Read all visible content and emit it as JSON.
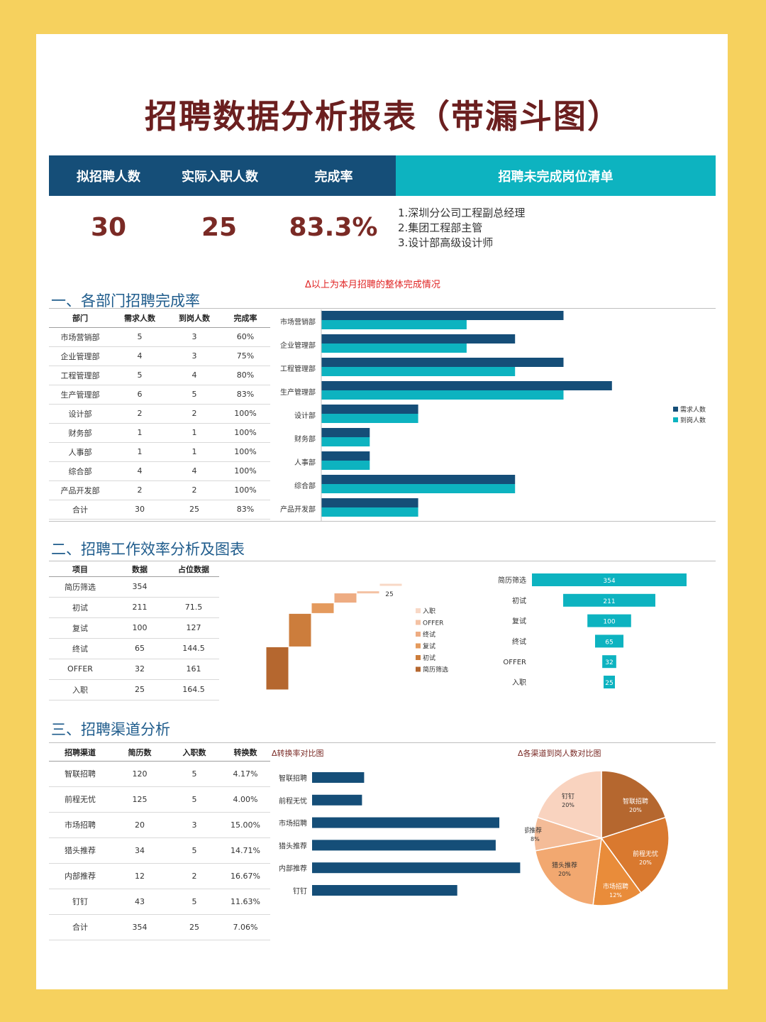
{
  "title": "招聘数据分析报表（带漏斗图）",
  "kpi": {
    "labels": [
      "拟招聘人数",
      "实际入职人数",
      "完成率"
    ],
    "values": [
      "30",
      "25",
      "83.3%"
    ],
    "todo_title": "招聘未完成岗位清单",
    "todo_items": [
      "1.深圳分公司工程副总经理",
      "2.集团工程部主管",
      "3.设计部高级设计师"
    ],
    "note": "Δ以上为本月招聘的整体完成情况"
  },
  "section1": {
    "title": "一、各部门招聘完成率",
    "headers": [
      "部门",
      "需求人数",
      "到岗人数",
      "完成率"
    ],
    "rows": [
      [
        "市场营销部",
        "5",
        "3",
        "60%"
      ],
      [
        "企业管理部",
        "4",
        "3",
        "75%"
      ],
      [
        "工程管理部",
        "5",
        "4",
        "80%"
      ],
      [
        "生产管理部",
        "6",
        "5",
        "83%"
      ],
      [
        "设计部",
        "2",
        "2",
        "100%"
      ],
      [
        "财务部",
        "1",
        "1",
        "100%"
      ],
      [
        "人事部",
        "1",
        "1",
        "100%"
      ],
      [
        "综合部",
        "4",
        "4",
        "100%"
      ],
      [
        "产品开发部",
        "2",
        "2",
        "100%"
      ],
      [
        "合计",
        "30",
        "25",
        "83%"
      ]
    ]
  },
  "section2": {
    "title": "二、招聘工作效率分析及图表",
    "headers": [
      "项目",
      "数据",
      "占位数据"
    ],
    "rows": [
      [
        "简历筛选",
        "354",
        ""
      ],
      [
        "初试",
        "211",
        "71.5"
      ],
      [
        "复试",
        "100",
        "127"
      ],
      [
        "终试",
        "65",
        "144.5"
      ],
      [
        "OFFER",
        "32",
        "161"
      ],
      [
        "入职",
        "25",
        "164.5"
      ]
    ]
  },
  "section3": {
    "title": "三、招聘渠道分析",
    "headers": [
      "招聘渠道",
      "简历数",
      "入职数",
      "转换数"
    ],
    "rows": [
      [
        "智联招聘",
        "120",
        "5",
        "4.17%"
      ],
      [
        "前程无忧",
        "125",
        "5",
        "4.00%"
      ],
      [
        "市场招聘",
        "20",
        "3",
        "15.00%"
      ],
      [
        "猎头推荐",
        "34",
        "5",
        "14.71%"
      ],
      [
        "内部推荐",
        "12",
        "2",
        "16.67%"
      ],
      [
        "钉钉",
        "43",
        "5",
        "11.63%"
      ],
      [
        "合计",
        "354",
        "25",
        "7.06%"
      ]
    ],
    "conv_note": "Δ转换率对比图",
    "pie_note": "Δ各渠道到岗人数对比图"
  },
  "colors": {
    "navy": "#154e78",
    "teal": "#0db3c0",
    "title": "#6b1f1f",
    "accent_red": "#e02424"
  },
  "chart_data": [
    {
      "type": "bar",
      "orientation": "horizontal",
      "categories": [
        "市场营销部",
        "企业管理部",
        "工程管理部",
        "生产管理部",
        "设计部",
        "财务部",
        "人事部",
        "综合部",
        "产品开发部"
      ],
      "series": [
        {
          "name": "需求人数",
          "values": [
            5,
            4,
            5,
            6,
            2,
            1,
            1,
            4,
            2
          ],
          "color": "#154e78"
        },
        {
          "name": "到岗人数",
          "values": [
            3,
            3,
            4,
            5,
            2,
            1,
            1,
            4,
            2
          ],
          "color": "#0db3c0"
        }
      ],
      "xlim": [
        0,
        6
      ],
      "legend": "right"
    },
    {
      "type": "bar",
      "orientation": "waterfall",
      "categories": [
        "简历筛选",
        "初试",
        "复试",
        "终试",
        "OFFER",
        "入职"
      ],
      "values": [
        354,
        211,
        100,
        65,
        32,
        25
      ],
      "labels": [
        "",
        "",
        "",
        "",
        "",
        "25"
      ],
      "legend_order": [
        "入职",
        "OFFER",
        "终试",
        "复试",
        "初试",
        "简历筛选"
      ],
      "colors": [
        "#b5672f",
        "#cc7d3c",
        "#e49a5d",
        "#eeac82",
        "#f4c2a4",
        "#f8d8c6"
      ],
      "legend": "right"
    },
    {
      "type": "bar",
      "orientation": "funnel",
      "categories": [
        "简历筛选",
        "初试",
        "复试",
        "终试",
        "OFFER",
        "入职"
      ],
      "values": [
        354,
        211,
        100,
        65,
        32,
        25
      ],
      "color": "#0db3c0"
    },
    {
      "type": "bar",
      "orientation": "horizontal",
      "categories": [
        "智联招聘",
        "前程无忧",
        "市场招聘",
        "猎头推荐",
        "内部推荐",
        "钉钉"
      ],
      "values": [
        4.17,
        4.0,
        15.0,
        14.71,
        16.67,
        11.63
      ],
      "unit": "%",
      "xlim": [
        0,
        17
      ],
      "color": "#154e78"
    },
    {
      "type": "pie",
      "categories": [
        "智联招聘",
        "前程无忧",
        "市场招聘",
        "猎头推荐",
        "内部推荐",
        "钉钉"
      ],
      "values": [
        5,
        5,
        3,
        5,
        2,
        5
      ],
      "labels": [
        "20%",
        "20%",
        "12%",
        "20%",
        "8%",
        "20%"
      ],
      "colors": [
        "#b5672f",
        "#d9792f",
        "#e98c3a",
        "#f2a870",
        "#f4bc98",
        "#f9d3bf"
      ]
    }
  ]
}
